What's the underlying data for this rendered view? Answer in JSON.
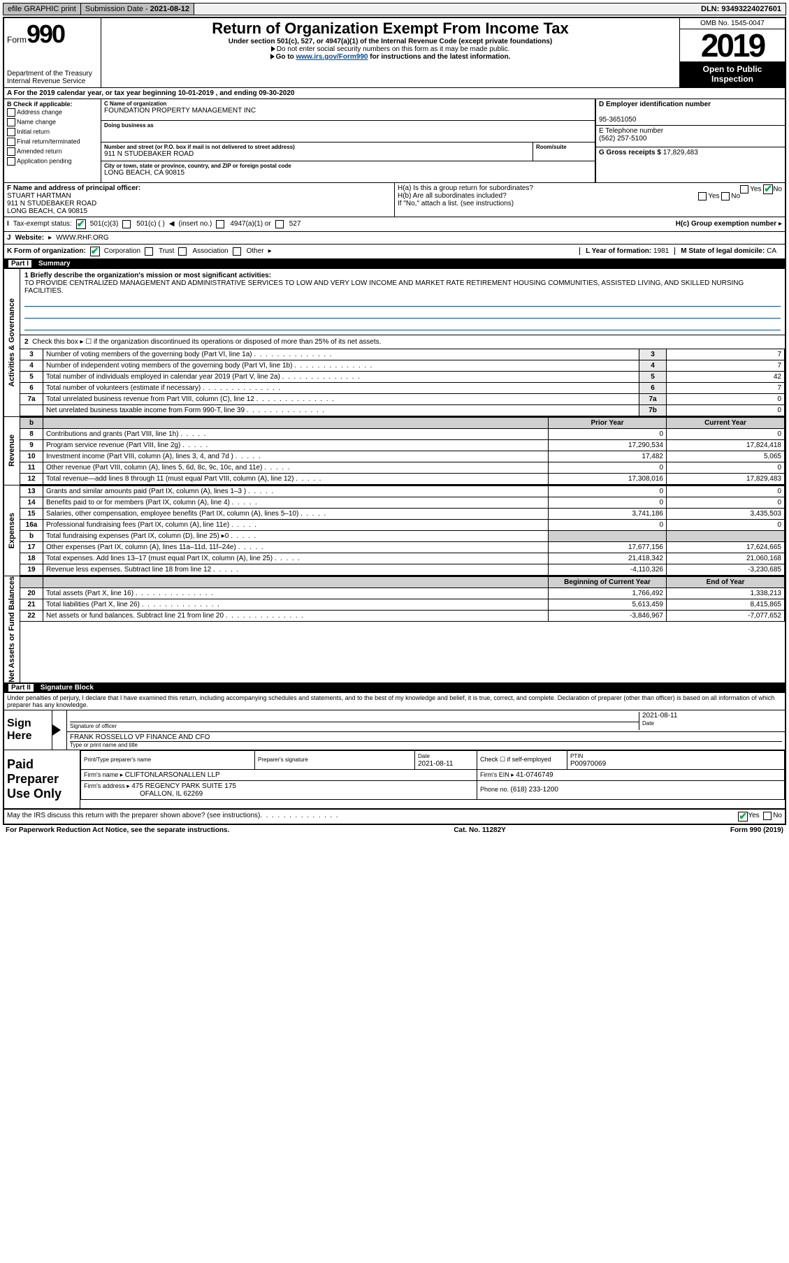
{
  "topbar": {
    "efile": "efile GRAPHIC print",
    "sub_label": "Submission Date - ",
    "sub_date": "2021-08-12",
    "dln": "DLN: 93493224027601"
  },
  "header": {
    "form_word": "Form",
    "form_num": "990",
    "dept1": "Department of the Treasury",
    "dept2": "Internal Revenue Service",
    "title": "Return of Organization Exempt From Income Tax",
    "sub1": "Under section 501(c), 527, or 4947(a)(1) of the Internal Revenue Code (except private foundations)",
    "sub2": "Do not enter social security numbers on this form as it may be made public.",
    "sub3a": "Go to ",
    "sub3_link": "www.irs.gov/Form990",
    "sub3b": " for instructions and the latest information.",
    "omb": "OMB No. 1545-0047",
    "year": "2019",
    "open1": "Open to Public",
    "open2": "Inspection"
  },
  "calyear": {
    "a": "A For the 2019 calendar year, or tax year beginning ",
    "begin": "10-01-2019",
    "mid": " , and ending ",
    "end": "09-30-2020"
  },
  "B": {
    "label": "B Check if applicable:",
    "addr": "Address change",
    "name": "Name change",
    "init": "Initial return",
    "final": "Final return/terminated",
    "amend": "Amended return",
    "app": "Application pending"
  },
  "C": {
    "name_label": "C Name of organization",
    "name": "FOUNDATION PROPERTY MANAGEMENT INC",
    "dba_label": "Doing business as",
    "dba": "",
    "street_label": "Number and street (or P.O. box if mail is not delivered to street address)",
    "room_label": "Room/suite",
    "street": "911 N STUDEBAKER ROAD",
    "city_label": "City or town, state or province, country, and ZIP or foreign postal code",
    "city": "LONG BEACH, CA  90815"
  },
  "D": {
    "label": "D Employer identification number",
    "value": "95-3651050"
  },
  "E": {
    "label": "E Telephone number",
    "value": "(562) 257-5100"
  },
  "G": {
    "label": "G Gross receipts $ ",
    "value": "17,829,483"
  },
  "F": {
    "label": "F  Name and address of principal officer:",
    "name": "STUART HARTMAN",
    "street": "911 N STUDEBAKER ROAD",
    "city": "LONG BEACH, CA  90815"
  },
  "H": {
    "a": "H(a)  Is this a group return for subordinates?",
    "b": "H(b)  Are all subordinates included?",
    "bnote": "If \"No,\" attach a list. (see instructions)",
    "c_label": "H(c)  Group exemption number ",
    "yes": "Yes",
    "no": "No"
  },
  "I": {
    "label": "Tax-exempt status:",
    "o1": "501(c)(3)",
    "o2": "501(c) (  ) ",
    "o2b": "(insert no.)",
    "o3": "4947(a)(1) or",
    "o4": "527"
  },
  "J": {
    "label": "J",
    "website_label": "Website: ",
    "website": "WWW.RHF.ORG"
  },
  "K": {
    "label": "K Form of organization:",
    "corp": "Corporation",
    "trust": "Trust",
    "assoc": "Association",
    "other": "Other"
  },
  "L": {
    "label": "L Year of formation: ",
    "value": "1981"
  },
  "M": {
    "label": "M State of legal domicile: ",
    "value": "CA"
  },
  "parts": {
    "p1": "Part I",
    "p1_title": "Summary",
    "p2": "Part II",
    "p2_title": "Signature Block"
  },
  "vert": {
    "act": "Activities & Governance",
    "rev": "Revenue",
    "exp": "Expenses",
    "net": "Net Assets or\nFund Balances"
  },
  "summary": {
    "l1_label": "1  Briefly describe the organization's mission or most significant activities:",
    "l1_text": "TO PROVIDE CENTRALIZED MANAGEMENT AND ADMINISTRATIVE SERVICES TO LOW AND VERY LOW INCOME AND MARKET RATE RETIREMENT HOUSING COMMUNITIES, ASSISTED LIVING, AND SKILLED NURSING FACILITIES.",
    "l2": "Check this box ▸ ☐  if the organization discontinued its operations or disposed of more than 25% of its net assets.",
    "rows_ag": [
      {
        "n": "3",
        "d": "Number of voting members of the governing body (Part VI, line 1a)",
        "box": "3",
        "v": "7"
      },
      {
        "n": "4",
        "d": "Number of independent voting members of the governing body (Part VI, line 1b)",
        "box": "4",
        "v": "7"
      },
      {
        "n": "5",
        "d": "Total number of individuals employed in calendar year 2019 (Part V, line 2a)",
        "box": "5",
        "v": "42"
      },
      {
        "n": "6",
        "d": "Total number of volunteers (estimate if necessary)",
        "box": "6",
        "v": "7"
      },
      {
        "n": "7a",
        "d": "Total unrelated business revenue from Part VIII, column (C), line 12",
        "box": "7a",
        "v": "0"
      },
      {
        "n": "",
        "d": "Net unrelated business taxable income from Form 990-T, line 39",
        "box": "7b",
        "v": "0"
      }
    ],
    "hdr_prior": "Prior Year",
    "hdr_curr": "Current Year",
    "rows_rev": [
      {
        "n": "8",
        "d": "Contributions and grants (Part VIII, line 1h)",
        "p": "0",
        "c": "0"
      },
      {
        "n": "9",
        "d": "Program service revenue (Part VIII, line 2g)",
        "p": "17,290,534",
        "c": "17,824,418"
      },
      {
        "n": "10",
        "d": "Investment income (Part VIII, column (A), lines 3, 4, and 7d )",
        "p": "17,482",
        "c": "5,065"
      },
      {
        "n": "11",
        "d": "Other revenue (Part VIII, column (A), lines 5, 6d, 8c, 9c, 10c, and 11e)",
        "p": "0",
        "c": "0"
      },
      {
        "n": "12",
        "d": "Total revenue—add lines 8 through 11 (must equal Part VIII, column (A), line 12)",
        "p": "17,308,016",
        "c": "17,829,483"
      }
    ],
    "rows_exp": [
      {
        "n": "13",
        "d": "Grants and similar amounts paid (Part IX, column (A), lines 1–3 )",
        "p": "0",
        "c": "0"
      },
      {
        "n": "14",
        "d": "Benefits paid to or for members (Part IX, column (A), line 4)",
        "p": "0",
        "c": "0"
      },
      {
        "n": "15",
        "d": "Salaries, other compensation, employee benefits (Part IX, column (A), lines 5–10)",
        "p": "3,741,186",
        "c": "3,435,503"
      },
      {
        "n": "16a",
        "d": "Professional fundraising fees (Part IX, column (A), line 11e)",
        "p": "0",
        "c": "0"
      },
      {
        "n": "b",
        "d": "Total fundraising expenses (Part IX, column (D), line 25) ▸0",
        "p": "",
        "c": "",
        "shade": true
      },
      {
        "n": "17",
        "d": "Other expenses (Part IX, column (A), lines 11a–11d, 11f–24e)",
        "p": "17,677,156",
        "c": "17,624,665"
      },
      {
        "n": "18",
        "d": "Total expenses. Add lines 13–17 (must equal Part IX, column (A), line 25)",
        "p": "21,418,342",
        "c": "21,060,168"
      },
      {
        "n": "19",
        "d": "Revenue less expenses. Subtract line 18 from line 12",
        "p": "-4,110,326",
        "c": "-3,230,685"
      }
    ],
    "hdr_boy": "Beginning of Current Year",
    "hdr_eoy": "End of Year",
    "rows_net": [
      {
        "n": "20",
        "d": "Total assets (Part X, line 16)",
        "p": "1,766,492",
        "c": "1,338,213"
      },
      {
        "n": "21",
        "d": "Total liabilities (Part X, line 26)",
        "p": "5,613,459",
        "c": "8,415,865"
      },
      {
        "n": "22",
        "d": "Net assets or fund balances. Subtract line 21 from line 20",
        "p": "-3,846,967",
        "c": "-7,077,652"
      }
    ]
  },
  "sig": {
    "penalty": "Under penalties of perjury, I declare that I have examined this return, including accompanying schedules and statements, and to the best of my knowledge and belief, it is true, correct, and complete. Declaration of preparer (other than officer) is based on all information of which preparer has any knowledge.",
    "sign_here": "Sign Here",
    "sig_officer_label": "Signature of officer",
    "date_label": "Date",
    "date": "2021-08-11",
    "name": "FRANK ROSSELLO  VP FINANCE AND CFO",
    "name_label": "Type or print name and title",
    "paid": "Paid Preparer Use Only",
    "p_name_label": "Print/Type preparer's name",
    "p_sig_label": "Preparer's signature",
    "p_date_label": "Date",
    "p_date": "2021-08-11",
    "p_check": "Check ☐ if self-employed",
    "ptin_label": "PTIN",
    "ptin": "P00970069",
    "firm_name_label": "Firm's name   ▸ ",
    "firm_name": "CLIFTONLARSONALLEN LLP",
    "firm_ein_label": "Firm's EIN ▸ ",
    "firm_ein": "41-0746749",
    "firm_addr_label": "Firm's address ▸ ",
    "firm_addr1": "475 REGENCY PARK SUITE 175",
    "firm_addr2": "OFALLON, IL  62269",
    "phone_label": "Phone no. ",
    "phone": "(618) 233-1200",
    "discuss": "May the IRS discuss this return with the preparer shown above? (see instructions)",
    "yes": "Yes",
    "no": "No"
  },
  "footer": {
    "left": "For Paperwork Reduction Act Notice, see the separate instructions.",
    "mid": "Cat. No. 11282Y",
    "right": "Form 990 (2019)"
  }
}
